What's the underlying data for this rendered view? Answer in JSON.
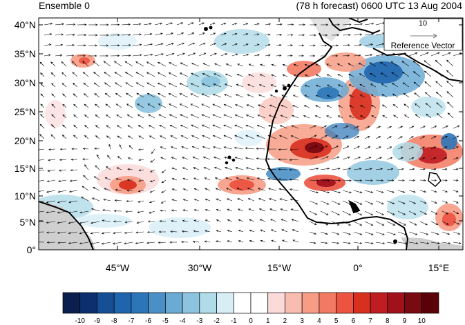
{
  "title_left": "Ensemble 0",
  "title_right": "(78 h forecast) 0600 UTC 13 Aug 2004",
  "chart_data": {
    "type": "heatmap",
    "lat_labels": [
      "0°",
      "5°N",
      "10°N",
      "15°N",
      "20°N",
      "25°N",
      "30°N",
      "35°N",
      "40°N"
    ],
    "lon_labels": [
      "45°W",
      "30°W",
      "15°W",
      "0°",
      "15°E"
    ],
    "reference_vector": {
      "value": "10",
      "label": "Reference Vector"
    },
    "colorbar": {
      "labels": [
        "-10",
        "-9",
        "-8",
        "-7",
        "-6",
        "-5",
        "-4",
        "-3",
        "-2",
        "-1",
        "0",
        "1",
        "2",
        "3",
        "4",
        "5",
        "6",
        "7",
        "8",
        "9",
        "10"
      ],
      "colors": [
        "#0a1f4d",
        "#0d2f6e",
        "#164f94",
        "#1f65ad",
        "#2b76b8",
        "#4a90c6",
        "#6aaad3",
        "#8cc4df",
        "#b0dbe8",
        "#d7eef6",
        "#ffffff",
        "#ffffff",
        "#fbdada",
        "#f9bcb0",
        "#f79c85",
        "#f27a62",
        "#ec5341",
        "#d7301f",
        "#c01d22",
        "#a0111c",
        "#7a0a12",
        "#5a0008"
      ]
    }
  }
}
